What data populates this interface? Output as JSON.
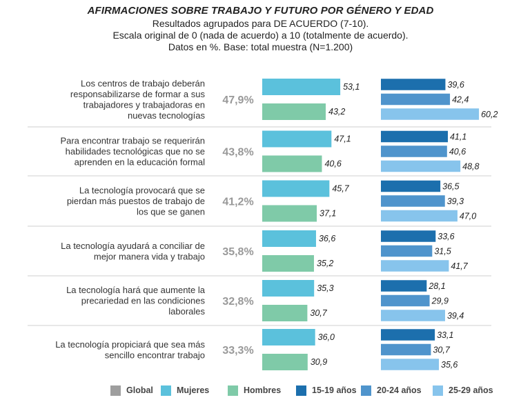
{
  "chart_data": {
    "type": "bar",
    "title": "AFIRMACIONES SOBRE TRABAJO Y FUTURO POR GÉNERO Y EDAD",
    "subtitle_lines": [
      "Resultados agrupados para DE ACUERDO (7-10).",
      "Escala original de 0 (nada de acuerdo) a 10 (totalmente de acuerdo).",
      "Datos en %. Base: total muestra (N=1.200)"
    ],
    "legend": [
      {
        "key": "global",
        "label": "Global",
        "color": "#9e9e9e"
      },
      {
        "key": "mujeres",
        "label": "Mujeres",
        "color": "#5bc1dc"
      },
      {
        "key": "hombres",
        "label": "Hombres",
        "color": "#7fcaa8"
      },
      {
        "key": "a15_19",
        "label": "15-19 años",
        "color": "#1c6fad"
      },
      {
        "key": "a20_24",
        "label": "20-24 años",
        "color": "#4f94cc"
      },
      {
        "key": "a25_29",
        "label": "25-29 años",
        "color": "#87c4ec"
      }
    ],
    "rows": [
      {
        "statement": [
          "Los centros de trabajo deberán",
          "responsabilizarse de formar a sus",
          "trabajadores y trabajadoras en",
          "nuevas tecnologías"
        ],
        "global": "47,9%",
        "gender": {
          "mujeres": 53.1,
          "hombres": 43.2
        },
        "gender_labels": [
          "53,1",
          "43,2"
        ],
        "age": [
          39.6,
          42.4,
          60.2
        ],
        "age_labels": [
          "39,6",
          "42,4",
          "60,2"
        ]
      },
      {
        "statement": [
          "Para encontrar trabajo se requerirán",
          "habilidades tecnológicas que no se",
          "aprenden en la educación formal"
        ],
        "global": "43,8%",
        "gender": {
          "mujeres": 47.1,
          "hombres": 40.6
        },
        "gender_labels": [
          "47,1",
          "40,6"
        ],
        "age": [
          41.1,
          40.6,
          48.8
        ],
        "age_labels": [
          "41,1",
          "40,6",
          "48,8"
        ]
      },
      {
        "statement": [
          "La tecnología provocará que se",
          "pierdan más puestos de trabajo de",
          "los que se ganen"
        ],
        "global": "41,2%",
        "gender": {
          "mujeres": 45.7,
          "hombres": 37.1
        },
        "gender_labels": [
          "45,7",
          "37,1"
        ],
        "age": [
          36.5,
          39.3,
          47.0
        ],
        "age_labels": [
          "36,5",
          "39,3",
          "47,0"
        ]
      },
      {
        "statement": [
          "La tecnología ayudará a conciliar de",
          "mejor manera vida y trabajo"
        ],
        "global": "35,8%",
        "gender": {
          "mujeres": 36.6,
          "hombres": 35.2
        },
        "gender_labels": [
          "36,6",
          "35,2"
        ],
        "age": [
          33.6,
          31.5,
          41.7
        ],
        "age_labels": [
          "33,6",
          "31,5",
          "41,7"
        ]
      },
      {
        "statement": [
          "La tecnología hará que aumente la",
          "precariedad en las condiciones",
          "laborales"
        ],
        "global": "32,8%",
        "gender": {
          "mujeres": 35.3,
          "hombres": 30.7
        },
        "gender_labels": [
          "35,3",
          "30,7"
        ],
        "age": [
          28.1,
          29.9,
          39.4
        ],
        "age_labels": [
          "28,1",
          "29,9",
          "39,4"
        ]
      },
      {
        "statement": [
          "La tecnología propiciará que sea más",
          "sencillo encontrar trabajo"
        ],
        "global": "33,3%",
        "gender": {
          "mujeres": 36.0,
          "hombres": 30.9
        },
        "gender_labels": [
          "36,0",
          "30,9"
        ],
        "age": [
          33.1,
          30.7,
          35.6
        ],
        "age_labels": [
          "33,1",
          "30,7",
          "35,6"
        ]
      }
    ]
  }
}
